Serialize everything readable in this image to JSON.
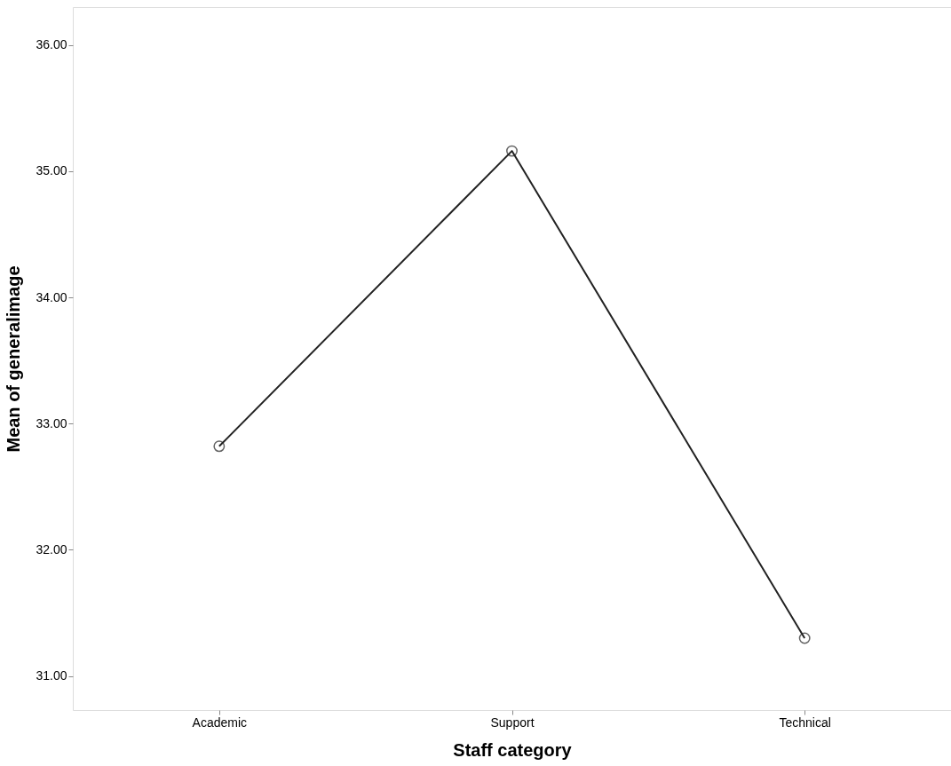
{
  "chart_data": {
    "type": "line",
    "xlabel": "Staff category",
    "ylabel": "Mean of generalimage",
    "categories": [
      "Academic",
      "Support",
      "Technical"
    ],
    "series": [
      {
        "color": "#222222",
        "values": [
          32.82,
          35.16,
          31.3
        ]
      }
    ],
    "ylim": [
      30.73,
      36.3
    ],
    "yticks": [
      {
        "value": 31,
        "label": "31.00"
      },
      {
        "value": 32,
        "label": "32.00"
      },
      {
        "value": 33,
        "label": "33.00"
      },
      {
        "value": 34,
        "label": "34.00"
      },
      {
        "value": 35,
        "label": "35.00"
      },
      {
        "value": 36,
        "label": "36.00"
      }
    ],
    "marker": "circle",
    "line_style": "solid",
    "grid": false,
    "legend": false
  }
}
